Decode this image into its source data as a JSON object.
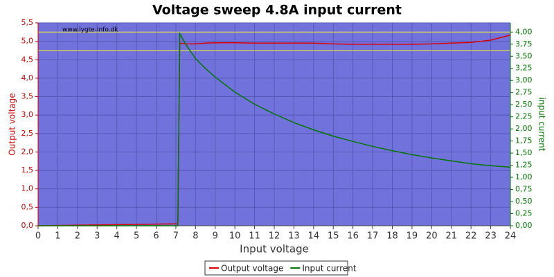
{
  "chart_data": {
    "type": "line",
    "title": "Voltage sweep 4.8A input current",
    "watermark": "www.lygte-info.dk",
    "xlabel": "Input voltage",
    "ylabel": "Output voltage",
    "y2label": "input current",
    "x": [
      0,
      7.0,
      7.1,
      7.2,
      7.5,
      8,
      8.5,
      9,
      10,
      11,
      12,
      13,
      14,
      15,
      16,
      17,
      18,
      19,
      20,
      21,
      22,
      23,
      24
    ],
    "series": [
      {
        "name": "Output voltage",
        "color": "#dd0000",
        "axis": "y",
        "values": [
          0,
          0.05,
          0.05,
          4.95,
          4.93,
          4.93,
          4.95,
          4.96,
          4.96,
          4.95,
          4.95,
          4.95,
          4.95,
          4.93,
          4.92,
          4.92,
          4.92,
          4.92,
          4.93,
          4.95,
          4.97,
          5.03,
          5.17
        ]
      },
      {
        "name": "Input current",
        "color": "#007700",
        "axis": "y2",
        "values": [
          0,
          0,
          0,
          3.97,
          3.75,
          3.45,
          3.25,
          3.07,
          2.76,
          2.51,
          2.31,
          2.13,
          1.98,
          1.85,
          1.74,
          1.64,
          1.55,
          1.47,
          1.4,
          1.34,
          1.28,
          1.24,
          1.21
        ]
      }
    ],
    "hlines": [
      5.25,
      4.75
    ],
    "hline_color": "#e8e840",
    "xlim": [
      0,
      24
    ],
    "xticks": [
      0,
      1,
      2,
      3,
      4,
      5,
      6,
      7,
      8,
      9,
      10,
      11,
      12,
      13,
      14,
      15,
      16,
      17,
      18,
      19,
      20,
      21,
      22,
      23,
      24
    ],
    "ylim": [
      0,
      5.5
    ],
    "yticks": [
      {
        "value": 0,
        "label": "0,0"
      },
      {
        "value": 0.5,
        "label": "0,5"
      },
      {
        "value": 1,
        "label": "1,0"
      },
      {
        "value": 1.5,
        "label": "1,5"
      },
      {
        "value": 2,
        "label": "2,0"
      },
      {
        "value": 2.5,
        "label": "2,5"
      },
      {
        "value": 3,
        "label": "3,0"
      },
      {
        "value": 3.5,
        "label": "3,5"
      },
      {
        "value": 4,
        "label": "4,0"
      },
      {
        "value": 4.5,
        "label": "4,5"
      },
      {
        "value": 5,
        "label": "5,0"
      },
      {
        "value": 5.5,
        "label": "5,5"
      }
    ],
    "y2lim": [
      0,
      4.19
    ],
    "y2ticks": [
      {
        "value": 0,
        "label": "0,00"
      },
      {
        "value": 0.25,
        "label": "0,25"
      },
      {
        "value": 0.5,
        "label": "0,50"
      },
      {
        "value": 0.75,
        "label": "0,75"
      },
      {
        "value": 1,
        "label": "1,00"
      },
      {
        "value": 1.25,
        "label": "1,25"
      },
      {
        "value": 1.5,
        "label": "1,50"
      },
      {
        "value": 1.75,
        "label": "1,75"
      },
      {
        "value": 2,
        "label": "2,00"
      },
      {
        "value": 2.25,
        "label": "2,25"
      },
      {
        "value": 2.5,
        "label": "2,50"
      },
      {
        "value": 2.75,
        "label": "2,75"
      },
      {
        "value": 3,
        "label": "3,00"
      },
      {
        "value": 3.25,
        "label": "3,25"
      },
      {
        "value": 3.5,
        "label": "3,50"
      },
      {
        "value": 3.75,
        "label": "3,75"
      },
      {
        "value": 4,
        "label": "4,00"
      }
    ],
    "grid": true
  }
}
